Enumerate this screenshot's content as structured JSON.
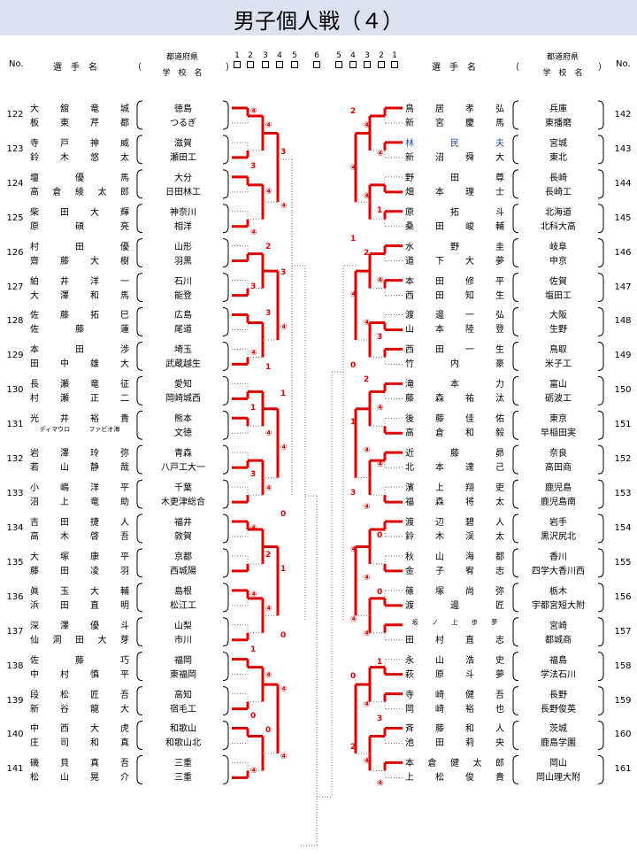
{
  "title": "男子個人戦（４）",
  "header": {
    "no": "No.",
    "player_name": "選　手　名",
    "paren_open": "（",
    "paren_close": "）",
    "pref": "都道府県",
    "school": "学　校　名",
    "rounds_left": [
      "1",
      "2",
      "3",
      "4",
      "5",
      "6"
    ],
    "rounds_right": [
      "5",
      "4",
      "3",
      "2",
      "1"
    ]
  },
  "left_pairs": [
    {
      "no": "122",
      "p1": {
        "name": "大 舘 竜 城",
        "school": "徳島"
      },
      "p2": {
        "name": "板 東 芹 都",
        "school": "つるぎ"
      }
    },
    {
      "no": "123",
      "p1": {
        "name": "寺 戸 神 威",
        "school": "滋賀"
      },
      "p2": {
        "name": "鈴 木 悠 太",
        "school": "瀬田工"
      }
    },
    {
      "no": "124",
      "p1": {
        "name": "壇 優 馬",
        "school": "大分"
      },
      "p2": {
        "name": "高 倉 綾 太 郎",
        "school": "日田林工"
      }
    },
    {
      "no": "125",
      "p1": {
        "name": "柴 田 大 輝",
        "school": "神奈川"
      },
      "p2": {
        "name": "原 碩 亮",
        "school": "相洋"
      }
    },
    {
      "no": "126",
      "p1": {
        "name": "村 田 優",
        "school": "山形"
      },
      "p2": {
        "name": "齋 藤 大 樹",
        "school": "羽黒"
      }
    },
    {
      "no": "127",
      "p1": {
        "name": "絈 井 洋 一",
        "school": "石川"
      },
      "p2": {
        "name": "大 澤 和 馬",
        "school": "能登"
      }
    },
    {
      "no": "128",
      "p1": {
        "name": "佐 藤 拓 巳",
        "school": "広島"
      },
      "p2": {
        "name": "佐 藤 蓮",
        "school": "尾道"
      }
    },
    {
      "no": "129",
      "p1": {
        "name": "本 田 渉",
        "school": "埼玉"
      },
      "p2": {
        "name": "田 中 雄 大",
        "school": "武蔵越生"
      }
    },
    {
      "no": "130",
      "p1": {
        "name": "長 瀬 竜 征",
        "school": "愛知"
      },
      "p2": {
        "name": "村 瀬 正 二",
        "school": "岡崎城西"
      }
    },
    {
      "no": "131",
      "p1": {
        "name": "光 井 裕 貴",
        "school": "熊本"
      },
      "p2": {
        "name": "ディマウロ ファビオ海",
        "school": "文徳"
      }
    },
    {
      "no": "132",
      "p1": {
        "name": "岩 澤 玲 弥",
        "school": "青森"
      },
      "p2": {
        "name": "若 山 静 哉",
        "school": "八戸工大一"
      }
    },
    {
      "no": "133",
      "p1": {
        "name": "小 嶋 洋 平",
        "school": "千葉"
      },
      "p2": {
        "name": "沼 上 竜 助",
        "school": "木更津総合"
      }
    },
    {
      "no": "134",
      "p1": {
        "name": "吉 田 捷 人",
        "school": "福井"
      },
      "p2": {
        "name": "高 木 啓 吾",
        "school": "敦賀"
      }
    },
    {
      "no": "135",
      "p1": {
        "name": "大 塚 康 平",
        "school": "京都"
      },
      "p2": {
        "name": "藤 田 凌 羽",
        "school": "西城陽"
      }
    },
    {
      "no": "136",
      "p1": {
        "name": "眞 玉 大 輔",
        "school": "島根"
      },
      "p2": {
        "name": "浜 田 直 明",
        "school": "松江工"
      }
    },
    {
      "no": "137",
      "p1": {
        "name": "深 澤 優 斗",
        "school": "山梨"
      },
      "p2": {
        "name": "仙 洞 田 大 芽",
        "school": "市川"
      }
    },
    {
      "no": "138",
      "p1": {
        "name": "佐 藤 巧",
        "school": "福岡"
      },
      "p2": {
        "name": "中 村 慎 平",
        "school": "東福岡"
      }
    },
    {
      "no": "139",
      "p1": {
        "name": "段 松 匠 吾",
        "school": "高知"
      },
      "p2": {
        "name": "新 谷 龍 大",
        "school": "宿毛工"
      }
    },
    {
      "no": "140",
      "p1": {
        "name": "中 西 大 虎",
        "school": "和歌山"
      },
      "p2": {
        "name": "庄 司 和 真",
        "school": "和歌山北"
      }
    },
    {
      "no": "141",
      "p1": {
        "name": "磯 貝 真 吾",
        "school": "三重"
      },
      "p2": {
        "name": "松 山 晃 介",
        "school": "三重"
      }
    }
  ],
  "right_pairs": [
    {
      "no": "142",
      "p1": {
        "name": "鳥 居 孝 弘",
        "school": "兵庫"
      },
      "p2": {
        "name": "新 宮 慶 馬",
        "school": "東播磨"
      }
    },
    {
      "no": "143",
      "p1": {
        "name": "林 民 夫",
        "school": "宮城"
      },
      "p2": {
        "name": "新 沼 舜 大",
        "school": "東北"
      }
    },
    {
      "no": "144",
      "p1": {
        "name": "野 田 尊",
        "school": "長崎"
      },
      "p2": {
        "name": "畑 本 理 士",
        "school": "長崎工"
      }
    },
    {
      "no": "145",
      "p1": {
        "name": "原 拓 斗",
        "school": "北海道"
      },
      "p2": {
        "name": "桑 田 峻 輔",
        "school": "北科大高"
      }
    },
    {
      "no": "146",
      "p1": {
        "name": "水 野 圭",
        "school": "岐阜"
      },
      "p2": {
        "name": "道 下 大 夢",
        "school": "中京"
      }
    },
    {
      "no": "147",
      "p1": {
        "name": "本 田 修 平",
        "school": "佐賀"
      },
      "p2": {
        "name": "西 田 知 生",
        "school": "塩田工"
      }
    },
    {
      "no": "148",
      "p1": {
        "name": "渡 邊 一 弘",
        "school": "大阪"
      },
      "p2": {
        "name": "山 本 陸 登",
        "school": "生野"
      }
    },
    {
      "no": "149",
      "p1": {
        "name": "西 田 一 生",
        "school": "鳥取"
      },
      "p2": {
        "name": "竹 内 豪",
        "school": "米子工"
      }
    },
    {
      "no": "150",
      "p1": {
        "name": "滝 本 力",
        "school": "富山"
      },
      "p2": {
        "name": "藤 森 祐 汰",
        "school": "砺波工"
      }
    },
    {
      "no": "151",
      "p1": {
        "name": "後 藤 佳 佑",
        "school": "東京"
      },
      "p2": {
        "name": "高 倉 和 毅",
        "school": "早稲田実"
      }
    },
    {
      "no": "152",
      "p1": {
        "name": "近 藤 昴",
        "school": "奈良"
      },
      "p2": {
        "name": "北 本 達 己",
        "school": "高田商"
      }
    },
    {
      "no": "153",
      "p1": {
        "name": "濱 上 翔 吏",
        "school": "鹿児島"
      },
      "p2": {
        "name": "福 森 将 太",
        "school": "鹿児島南"
      }
    },
    {
      "no": "154",
      "p1": {
        "name": "渡 辺 碧 人",
        "school": "岩手"
      },
      "p2": {
        "name": "鈴 木 渓 太",
        "school": "黒沢尻北"
      }
    },
    {
      "no": "155",
      "p1": {
        "name": "秋 山 海 都",
        "school": "香川"
      },
      "p2": {
        "name": "金 子 宥 志",
        "school": "四学大香川西"
      }
    },
    {
      "no": "156",
      "p1": {
        "name": "篠 塚 尚 弥",
        "school": "栃木"
      },
      "p2": {
        "name": "渡 邊 匠",
        "school": "宇都宮短大附"
      }
    },
    {
      "no": "157",
      "p1": {
        "name": "坂 ノ 上 歩 夢",
        "school": "宮崎"
      },
      "p2": {
        "name": "田 村 直 志",
        "school": "都城商"
      }
    },
    {
      "no": "158",
      "p1": {
        "name": "永 山 浩 史",
        "school": "福島"
      },
      "p2": {
        "name": "萩 原 斗 夢",
        "school": "学法石川"
      }
    },
    {
      "no": "159",
      "p1": {
        "name": "寺 崎 健 吾",
        "school": "長野"
      },
      "p2": {
        "name": "岡 崎 裕 也",
        "school": "長野俊英"
      }
    },
    {
      "no": "160",
      "p1": {
        "name": "斉 藤 和 人",
        "school": "茨城"
      },
      "p2": {
        "name": "池 田 莉 央",
        "school": "鹿島学園"
      }
    },
    {
      "no": "161",
      "p1": {
        "name": "本 倉 健 太 郎",
        "school": "岡山"
      },
      "p2": {
        "name": "上 松 俊 貴",
        "school": "岡山理大附"
      }
    }
  ],
  "scores": {
    "win": "④",
    "left": [
      {
        "label": "④"
      },
      {
        "label": "④"
      },
      {
        "label": "3"
      },
      {
        "label": "3"
      },
      {
        "label": "④"
      },
      {
        "label": "④"
      },
      {
        "label": "④"
      },
      {
        "label": "2"
      },
      {
        "label": "3"
      },
      {
        "label": "3"
      },
      {
        "label": "3"
      },
      {
        "label": "④"
      },
      {
        "label": "④"
      },
      {
        "label": "1"
      },
      {
        "label": "1"
      },
      {
        "label": "1"
      },
      {
        "label": "④"
      },
      {
        "label": "④"
      },
      {
        "label": "3"
      },
      {
        "label": "④"
      },
      {
        "label": "0"
      },
      {
        "label": "④"
      },
      {
        "label": "2"
      },
      {
        "label": "1"
      },
      {
        "label": "④"
      },
      {
        "label": "④"
      },
      {
        "label": "0"
      },
      {
        "label": "1"
      },
      {
        "label": "④"
      },
      {
        "label": "④"
      },
      {
        "label": "0"
      },
      {
        "label": "0"
      },
      {
        "label": "④"
      },
      {
        "label": "④"
      }
    ],
    "right": [
      {
        "label": "2"
      },
      {
        "label": "④"
      },
      {
        "label": "④"
      },
      {
        "label": "④"
      },
      {
        "label": "④"
      },
      {
        "label": "1"
      },
      {
        "label": "1"
      },
      {
        "label": "2"
      },
      {
        "label": "④"
      },
      {
        "label": "④"
      },
      {
        "label": "④"
      },
      {
        "label": "3"
      },
      {
        "label": "0"
      },
      {
        "label": "2"
      },
      {
        "label": "④"
      },
      {
        "label": "1"
      },
      {
        "label": "④"
      },
      {
        "label": "④"
      },
      {
        "label": "3"
      },
      {
        "label": "④"
      },
      {
        "label": "0"
      },
      {
        "label": "④"
      },
      {
        "label": "④"
      },
      {
        "label": "0"
      },
      {
        "label": "④"
      },
      {
        "label": "④"
      },
      {
        "label": "1"
      },
      {
        "label": "0"
      },
      {
        "label": "④"
      },
      {
        "label": "3"
      },
      {
        "label": "2"
      },
      {
        "label": "④"
      },
      {
        "label": "④"
      }
    ]
  }
}
